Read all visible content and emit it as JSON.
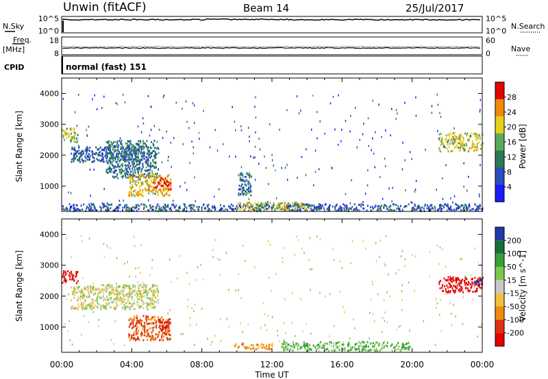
{
  "header": {
    "station": "Unwin (fitACF)",
    "beam": "Beam 14",
    "date": "25/Jul/2017"
  },
  "left_labels": {
    "nsky": "N.Sky",
    "freq_line1": "Freq.",
    "freq_line2": "[MHz]",
    "cpid": "CPID"
  },
  "right_labels": {
    "nsearch": "N.Search",
    "nave": "Nave"
  },
  "strip_ticks": {
    "noise_left_top": "10^5",
    "noise_left_bottom": "10^0",
    "noise_right_top": "10^5",
    "noise_right_bottom": "10^0",
    "freq_left_top": "18",
    "freq_left_bottom": "8",
    "nave_right_top": "60",
    "nave_right_bottom": "0"
  },
  "cpid_text": "normal (fast) 151",
  "x_axis": {
    "label": "Time UT",
    "ticks": [
      "00:00",
      "04:00",
      "08:00",
      "12:00",
      "16:00",
      "20:00",
      "00:00"
    ]
  },
  "y_axis": {
    "label": "Slant Range [km]",
    "ticks": [
      "1000",
      "2000",
      "3000",
      "4000"
    ]
  },
  "power_colorbar": {
    "label": "Power [dB]",
    "ticks": [
      "4",
      "8",
      "12",
      "16",
      "20",
      "24",
      "28"
    ],
    "colors": [
      "#1a1aff",
      "#2a4cc0",
      "#2a7a55",
      "#5caa5c",
      "#e8d01a",
      "#f08a0a",
      "#e60000"
    ]
  },
  "velocity_colorbar": {
    "label": "Velocity [m s^-1]",
    "ticks": [
      "200",
      "100",
      "50",
      "15",
      "-15",
      "-50",
      "-100",
      "-200"
    ],
    "colors": [
      "#1f3aa8",
      "#1a6e3a",
      "#38a038",
      "#7ec850",
      "#c8c8c8",
      "#f0c040",
      "#f08a0a",
      "#e03010",
      "#e60000"
    ]
  },
  "chart_data": [
    {
      "type": "heatmap",
      "title": "Power",
      "xlabel": "Time UT",
      "ylabel": "Slant Range [km]",
      "xlim": [
        0,
        24
      ],
      "ylim": [
        180,
        4500
      ],
      "colorbar_label": "Power [dB]",
      "colorbar_range": [
        0,
        32
      ],
      "regions": [
        {
          "t_start": 0.0,
          "t_end": 0.9,
          "r_min": 2450,
          "r_max": 2900,
          "value": 18
        },
        {
          "t_start": 0.5,
          "t_end": 5.0,
          "r_min": 1800,
          "r_max": 2300,
          "value": 8
        },
        {
          "t_start": 2.5,
          "t_end": 5.5,
          "r_min": 1300,
          "r_max": 2500,
          "value": 10
        },
        {
          "t_start": 3.8,
          "t_end": 6.2,
          "r_min": 700,
          "r_max": 1400,
          "value": 22
        },
        {
          "t_start": 5.2,
          "t_end": 6.2,
          "r_min": 900,
          "r_max": 1300,
          "value": 28
        },
        {
          "t_start": 0.0,
          "t_end": 24.0,
          "r_min": 220,
          "r_max": 450,
          "value": 8
        },
        {
          "t_start": 10.0,
          "t_end": 14.0,
          "r_min": 250,
          "r_max": 500,
          "value": 20
        },
        {
          "t_start": 10.0,
          "t_end": 10.8,
          "r_min": 700,
          "r_max": 1500,
          "value": 10
        },
        {
          "t_start": 21.5,
          "t_end": 24.0,
          "r_min": 2150,
          "r_max": 2750,
          "value": 20
        }
      ]
    },
    {
      "type": "heatmap",
      "title": "Velocity",
      "xlabel": "Time UT",
      "ylabel": "Slant Range [km]",
      "xlim": [
        0,
        24
      ],
      "ylim": [
        180,
        4500
      ],
      "colorbar_label": "Velocity [m s^-1]",
      "colorbar_range": [
        -200,
        200
      ],
      "regions": [
        {
          "t_start": 0.0,
          "t_end": 0.9,
          "r_min": 2450,
          "r_max": 2850,
          "value": -200
        },
        {
          "t_start": 0.5,
          "t_end": 5.5,
          "r_min": 1600,
          "r_max": 2400,
          "value": 0
        },
        {
          "t_start": 3.8,
          "t_end": 6.2,
          "r_min": 600,
          "r_max": 1400,
          "value": -80
        },
        {
          "t_start": 5.5,
          "t_end": 6.2,
          "r_min": 900,
          "r_max": 1300,
          "value": -150
        },
        {
          "t_start": 9.8,
          "t_end": 12.0,
          "r_min": 300,
          "r_max": 500,
          "value": -50
        },
        {
          "t_start": 12.5,
          "t_end": 20.0,
          "r_min": 250,
          "r_max": 550,
          "value": 30
        },
        {
          "t_start": 21.5,
          "t_end": 24.0,
          "r_min": 2150,
          "r_max": 2650,
          "value": -200
        },
        {
          "t_start": 23.5,
          "t_end": 24.0,
          "r_min": 2300,
          "r_max": 2600,
          "value": 200
        }
      ]
    }
  ]
}
